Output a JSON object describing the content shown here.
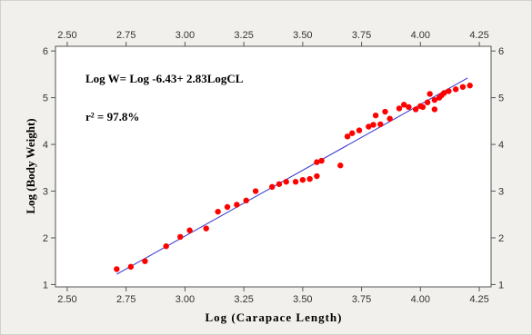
{
  "chart_data": {
    "type": "scatter",
    "title": "",
    "xlabel": "Log (Carapace Length)",
    "ylabel": "Log (Body Weight)",
    "xlim": [
      2.45,
      4.3
    ],
    "ylim": [
      0.95,
      6.1
    ],
    "x_ticks": [
      "2.50",
      "2.75",
      "3.00",
      "3.25",
      "3.50",
      "3.75",
      "4.00",
      "4.25"
    ],
    "y_ticks": [
      "1",
      "2",
      "3",
      "4",
      "5",
      "6"
    ],
    "grid": false,
    "mirror_axes": true,
    "annotations": {
      "equation": "Log W= Log -6.43+ 2.83LogCL",
      "r_squared": "r² = 97.8%"
    },
    "fit_line": {
      "x": [
        2.71,
        4.2
      ],
      "y": [
        1.22,
        5.42
      ]
    },
    "series": [
      {
        "values": [
          [
            2.71,
            1.33
          ],
          [
            2.77,
            1.38
          ],
          [
            2.83,
            1.5
          ],
          [
            2.92,
            1.82
          ],
          [
            2.98,
            2.02
          ],
          [
            3.02,
            2.16
          ],
          [
            3.09,
            2.2
          ],
          [
            3.14,
            2.56
          ],
          [
            3.18,
            2.66
          ],
          [
            3.22,
            2.71
          ],
          [
            3.26,
            2.8
          ],
          [
            3.3,
            3.0
          ],
          [
            3.37,
            3.09
          ],
          [
            3.4,
            3.15
          ],
          [
            3.43,
            3.2
          ],
          [
            3.47,
            3.2
          ],
          [
            3.5,
            3.24
          ],
          [
            3.53,
            3.26
          ],
          [
            3.56,
            3.32
          ],
          [
            3.56,
            3.62
          ],
          [
            3.58,
            3.65
          ],
          [
            3.66,
            3.55
          ],
          [
            3.69,
            4.17
          ],
          [
            3.71,
            4.24
          ],
          [
            3.74,
            4.3
          ],
          [
            3.78,
            4.38
          ],
          [
            3.8,
            4.42
          ],
          [
            3.81,
            4.62
          ],
          [
            3.83,
            4.43
          ],
          [
            3.85,
            4.7
          ],
          [
            3.87,
            4.55
          ],
          [
            3.91,
            4.77
          ],
          [
            3.93,
            4.85
          ],
          [
            3.95,
            4.8
          ],
          [
            3.98,
            4.75
          ],
          [
            4.0,
            4.82
          ],
          [
            4.01,
            4.8
          ],
          [
            4.03,
            4.9
          ],
          [
            4.04,
            5.08
          ],
          [
            4.06,
            4.75
          ],
          [
            4.06,
            4.95
          ],
          [
            4.08,
            5.0
          ],
          [
            4.09,
            5.05
          ],
          [
            4.1,
            5.1
          ],
          [
            4.12,
            5.14
          ],
          [
            4.15,
            5.18
          ],
          [
            4.18,
            5.23
          ],
          [
            4.21,
            5.26
          ]
        ]
      }
    ],
    "colors": {
      "points": "#ff0000",
      "fit_line": "#3333cc",
      "frame_background": "#f1f0ec",
      "plot_background": "#ffffff",
      "axis": "#555555"
    }
  }
}
